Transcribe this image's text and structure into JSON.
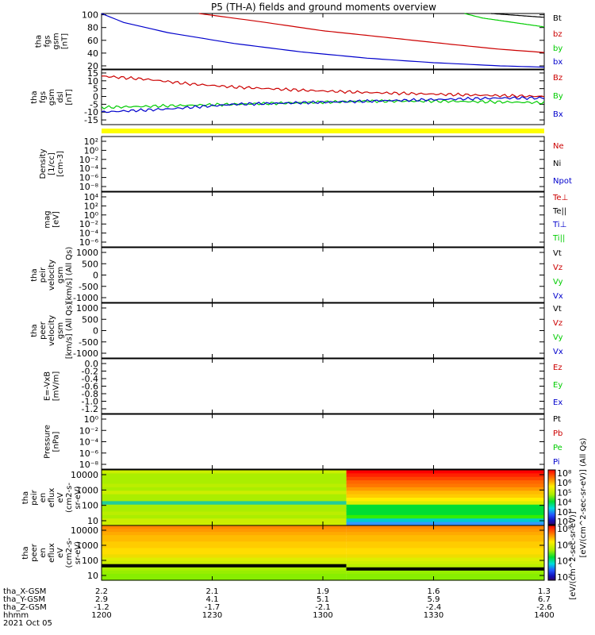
{
  "title": "P5 (TH-A) fields and ground moments overview",
  "chart_data": {
    "type": "multi-panel time series",
    "x_ticks": [
      "1200",
      "1230",
      "1300",
      "1330",
      "1400"
    ],
    "orbit": {
      "rows": [
        {
          "label": "tha_X-GSM",
          "values": [
            "2.2",
            "2.1",
            "1.9",
            "1.6",
            "1.3"
          ]
        },
        {
          "label": "tha_Y-GSM",
          "values": [
            "2.9",
            "4.1",
            "5.1",
            "5.9",
            "6.7"
          ]
        },
        {
          "label": "tha_Z-GSM",
          "values": [
            "-1.2",
            "-1.7",
            "-2.1",
            "-2.4",
            "-2.6"
          ]
        },
        {
          "label": "hhmm",
          "values": [
            "1200",
            "1230",
            "1300",
            "1330",
            "1400"
          ]
        }
      ],
      "date": "2021 Oct 05"
    },
    "panels": [
      {
        "id": "fgs-mag",
        "ylabel": [
          "tha",
          "fgs",
          "gsm",
          "[nT]"
        ],
        "yticks": [
          "20",
          "40",
          "60",
          "80",
          "100"
        ],
        "ylim": [
          15,
          102
        ],
        "legend": [
          {
            "label": "Bt",
            "color": "#000000"
          },
          {
            "label": "bz",
            "color": "#cc0000"
          },
          {
            "label": "by",
            "color": "#00cc00"
          },
          {
            "label": "bx",
            "color": "#0000cc"
          }
        ],
        "series": [
          {
            "color": "#0000cc",
            "points": [
              [
                0.0,
                102
              ],
              [
                0.05,
                88
              ],
              [
                0.15,
                72
              ],
              [
                0.3,
                55
              ],
              [
                0.45,
                42
              ],
              [
                0.6,
                32
              ],
              [
                0.75,
                25
              ],
              [
                0.9,
                20
              ],
              [
                1.0,
                18
              ]
            ]
          },
          {
            "color": "#cc0000",
            "points": [
              [
                0.22,
                102
              ],
              [
                0.35,
                90
              ],
              [
                0.5,
                75
              ],
              [
                0.65,
                64
              ],
              [
                0.8,
                53
              ],
              [
                0.9,
                46
              ],
              [
                1.0,
                41
              ]
            ]
          },
          {
            "color": "#00cc00",
            "points": [
              [
                0.82,
                102
              ],
              [
                0.86,
                95
              ],
              [
                0.9,
                91
              ],
              [
                0.95,
                86
              ],
              [
                1.0,
                81
              ]
            ]
          },
          {
            "color": "#000000",
            "points": [
              [
                0.88,
                102
              ],
              [
                0.92,
                100
              ],
              [
                0.96,
                98
              ],
              [
                1.0,
                96
              ]
            ]
          }
        ]
      },
      {
        "id": "fgs-dsl",
        "ylabel": [
          "tha",
          "fgs",
          "gsm",
          "dsl",
          "[nT]"
        ],
        "yticks": [
          "-15",
          "-10",
          "-5",
          "0",
          "5",
          "10",
          "15"
        ],
        "ylim": [
          -18,
          17
        ],
        "legend": [
          {
            "label": "Bz",
            "color": "#cc0000"
          },
          {
            "label": "By",
            "color": "#00cc00"
          },
          {
            "label": "Bx",
            "color": "#0000cc"
          }
        ],
        "series": [
          {
            "color": "#cc0000",
            "noisy": true,
            "points": [
              [
                0.0,
                13
              ],
              [
                0.1,
                11
              ],
              [
                0.2,
                8
              ],
              [
                0.3,
                6
              ],
              [
                0.45,
                4
              ],
              [
                0.6,
                2.5
              ],
              [
                0.75,
                1.5
              ],
              [
                0.9,
                0.5
              ],
              [
                1.0,
                0
              ]
            ]
          },
          {
            "color": "#00cc00",
            "noisy": true,
            "points": [
              [
                0.0,
                -7
              ],
              [
                0.15,
                -6
              ],
              [
                0.3,
                -5
              ],
              [
                0.45,
                -4
              ],
              [
                0.6,
                -3
              ],
              [
                0.75,
                -3
              ],
              [
                0.9,
                -3.5
              ],
              [
                1.0,
                -4
              ]
            ]
          },
          {
            "color": "#0000cc",
            "noisy": true,
            "points": [
              [
                0.0,
                -10
              ],
              [
                0.15,
                -8
              ],
              [
                0.3,
                -5
              ],
              [
                0.45,
                -4
              ],
              [
                0.6,
                -3
              ],
              [
                0.75,
                -2
              ],
              [
                0.9,
                -1
              ],
              [
                1.0,
                -1
              ]
            ]
          }
        ]
      },
      {
        "id": "density",
        "ylabel": [
          "Density",
          "[1/cc]",
          "[cm-3]"
        ],
        "yticks": [
          "10²",
          "10⁰",
          "10⁻²",
          "10⁻⁴",
          "10⁻⁶",
          "10⁻⁸"
        ],
        "legend": [
          {
            "label": "Ne",
            "color": "#cc0000"
          },
          {
            "label": "Ni",
            "color": "#000000"
          },
          {
            "label": "Npot",
            "color": "#0000cc"
          }
        ],
        "series": []
      },
      {
        "id": "temperature",
        "ylabel": [
          "mag",
          "[eV]"
        ],
        "yticks": [
          "10⁴",
          "10²",
          "10⁰",
          "10⁻²",
          "10⁻⁴",
          "10⁻⁶"
        ],
        "legend": [
          {
            "label": "Te⊥",
            "color": "#cc0000"
          },
          {
            "label": "Te||",
            "color": "#000000"
          },
          {
            "label": "Ti⊥",
            "color": "#0000cc"
          },
          {
            "label": "Ti||",
            "color": "#00cc00"
          }
        ],
        "series": []
      },
      {
        "id": "peir-velocity",
        "ylabel": [
          "tha",
          "peir",
          "velocity",
          "gsm",
          "[km/s] (All Qs)"
        ],
        "yticks": [
          "1000",
          "500",
          "0",
          "-500",
          "-1000"
        ],
        "legend": [
          {
            "label": "Vt",
            "color": "#000000"
          },
          {
            "label": "Vz",
            "color": "#cc0000"
          },
          {
            "label": "Vy",
            "color": "#00cc00"
          },
          {
            "label": "Vx",
            "color": "#0000cc"
          }
        ],
        "series": []
      },
      {
        "id": "peer-velocity",
        "ylabel": [
          "tha",
          "peer",
          "velocity",
          "gsm",
          "[km/s] (All Qs)"
        ],
        "yticks": [
          "1000",
          "500",
          "0",
          "-500",
          "-1000"
        ],
        "legend": [
          {
            "label": "Vt",
            "color": "#000000"
          },
          {
            "label": "Vz",
            "color": "#cc0000"
          },
          {
            "label": "Vy",
            "color": "#00cc00"
          },
          {
            "label": "Vx",
            "color": "#0000cc"
          }
        ],
        "series": []
      },
      {
        "id": "efield",
        "ylabel": [
          "E=-VxB",
          "[mV/m]"
        ],
        "yticks": [
          "0.0",
          "-0.2",
          "-0.4",
          "-0.6",
          "-0.8",
          "-1.0",
          "-1.2"
        ],
        "legend": [
          {
            "label": "Ez",
            "color": "#cc0000"
          },
          {
            "label": "Ey",
            "color": "#00cc00"
          },
          {
            "label": "Ex",
            "color": "#0000cc"
          }
        ],
        "series": []
      },
      {
        "id": "pressure",
        "ylabel": [
          "Pressure",
          "[nPa]"
        ],
        "yticks": [
          "10⁰",
          "10⁻²",
          "10⁻⁴",
          "10⁻⁶",
          "10⁻⁸"
        ],
        "legend": [
          {
            "label": "Pt",
            "color": "#000000"
          },
          {
            "label": "Pb",
            "color": "#cc0000"
          },
          {
            "label": "Pe",
            "color": "#00cc00"
          },
          {
            "label": "Pi",
            "color": "#0000cc"
          }
        ],
        "series": []
      },
      {
        "id": "peir-en-eflux",
        "type": "spectrogram",
        "ylabel": [
          "tha",
          "peir",
          "en",
          "eflux",
          "eV",
          "(cm2-s-",
          "sr-eV)"
        ],
        "yticks": [
          "10000",
          "1000",
          "100",
          "10"
        ],
        "left_bands": [
          "#ccee00",
          "#aaee00",
          "#aaee00",
          "#aaee00",
          "#bbee00",
          "#aaee00",
          "#ccee00",
          "#aaee00",
          "#aaee00",
          "#22cc99",
          "#aaee00",
          "#aaee00",
          "#bbee00",
          "#aaee00",
          "#ccee00",
          "#ccee00"
        ],
        "right_bands": [
          "#ff0000",
          "#ff2200",
          "#ff4400",
          "#ff6600",
          "#ff7700",
          "#ff9900",
          "#ffbb00",
          "#ffcc00",
          "#ffee00",
          "#ddee00",
          "#00dd33",
          "#00dd33",
          "#00dd33",
          "#33ee00",
          "#00cccc",
          "#3399ff"
        ]
      },
      {
        "id": "peer-en-eflux",
        "type": "spectrogram",
        "ylabel": [
          "tha",
          "peer",
          "en",
          "eflux",
          "eV",
          "(cm2-s-",
          "sr-eV)"
        ],
        "yticks": [
          "10000",
          "1000",
          "100",
          "10"
        ],
        "left_bands": [
          "#ff8800",
          "#ff9900",
          "#ffaa00",
          "#ffbb00",
          "#ffbb00",
          "#ffcc00",
          "#ffcc00",
          "#ffdd00",
          "#ffdd00",
          "#eedd00",
          "#ddee00",
          "#ccee00",
          "#000000",
          "#aaee00",
          "#99ee00",
          "#88ee00",
          "#88ee00"
        ],
        "right_bands": [
          "#ff8800",
          "#ff9900",
          "#ffaa00",
          "#ffbb00",
          "#ffbb00",
          "#ffcc00",
          "#ffcc00",
          "#ffdd00",
          "#ffdd00",
          "#eedd00",
          "#ddee00",
          "#ccee00",
          "#bbee00",
          "#000000",
          "#99ee00",
          "#88ee00",
          "#88ee00"
        ]
      }
    ],
    "colorbar": {
      "label": "[eV/(cm^2-sec-sr-eV)] (All Qs)",
      "label2": "[eV/(cm^2-sec-sr-eV)]",
      "top_ticks": [
        "10⁸",
        "10⁶",
        "10⁵",
        "10⁴",
        "10³",
        "10²"
      ],
      "bottom_ticks": [
        "10⁸",
        "10⁶",
        "10⁴",
        "10²"
      ]
    }
  }
}
